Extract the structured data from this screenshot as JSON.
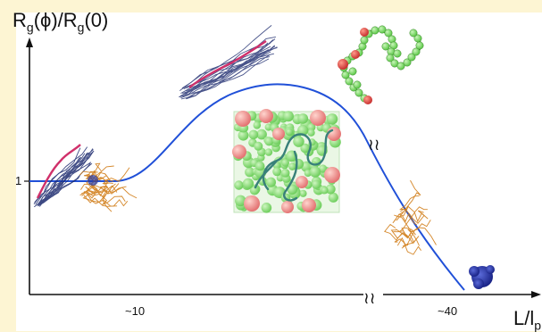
{
  "axes": {
    "y_label_main": "R",
    "y_label_sub1": "g",
    "y_label_mid": "(ϕ)/R",
    "y_label_sub2": "g",
    "y_label_end": "(0)",
    "x_label_main": "L/l",
    "x_label_sub": "p"
  },
  "ticks": {
    "y_one": "1",
    "x_10": "~10",
    "x_40": "~40"
  },
  "break_mark": "≀≀",
  "colors": {
    "background": "#fdf5d3",
    "curve": "#2050d8",
    "chain_navy": "#1c2a6e",
    "chain_pink": "#d0306a",
    "chain_orange": "#d07a12",
    "sphere_green": "#62d84a",
    "sphere_red": "#e45050",
    "globule_blue": "#2738a8"
  }
}
